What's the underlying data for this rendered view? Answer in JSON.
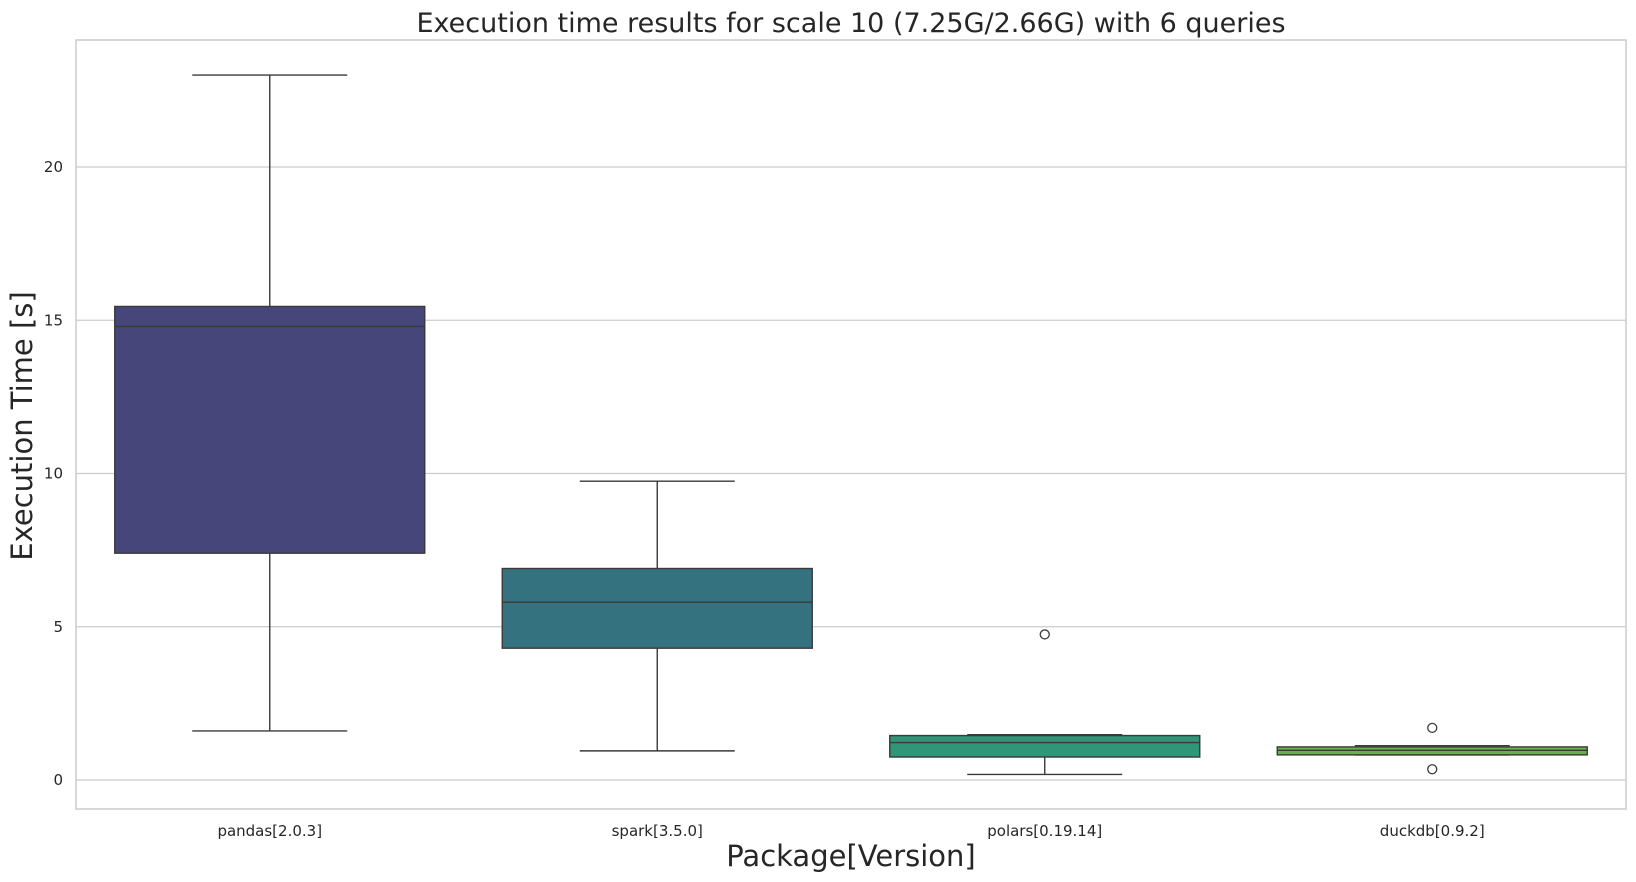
{
  "chart_data": {
    "type": "box",
    "title": "Execution time results for scale 10 (7.25G/2.66G) with 6 queries",
    "xlabel": "Package[Version]",
    "ylabel": "Execution Time [s]",
    "ylim": [
      -1,
      24
    ],
    "yticks": [
      0,
      5,
      10,
      15,
      20
    ],
    "grid": "horizontal",
    "categories": [
      "pandas[2.0.3]",
      "spark[3.5.0]",
      "polars[0.19.14]",
      "duckdb[0.9.2]"
    ],
    "boxes": [
      {
        "category": "pandas[2.0.3]",
        "color": "#46467a",
        "whisker_low": 1.6,
        "q1": 7.4,
        "median": 14.8,
        "q3": 15.45,
        "whisker_high": 23.0,
        "outliers": []
      },
      {
        "category": "spark[3.5.0]",
        "color": "#35727f",
        "whisker_low": 0.95,
        "q1": 4.3,
        "median": 5.8,
        "q3": 6.9,
        "whisker_high": 9.75,
        "outliers": []
      },
      {
        "category": "polars[0.19.14]",
        "color": "#2f9677",
        "whisker_low": 0.18,
        "q1": 0.75,
        "median": 1.22,
        "q3": 1.45,
        "whisker_high": 1.48,
        "outliers": [
          4.75
        ]
      },
      {
        "category": "duckdb[0.9.2]",
        "color": "#6ab04f",
        "whisker_low": 0.82,
        "q1": 0.82,
        "median": 0.97,
        "q3": 1.08,
        "whisker_high": 1.12,
        "outliers": [
          0.35,
          1.7
        ]
      }
    ]
  }
}
